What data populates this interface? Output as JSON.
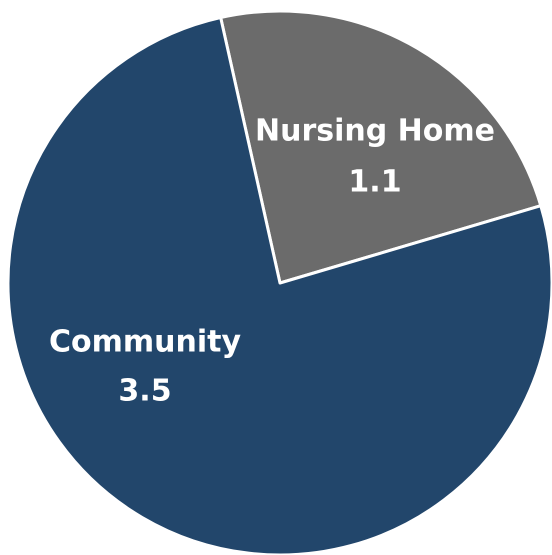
{
  "chart_data": {
    "type": "pie",
    "categories": [
      "Nursing Home",
      "Community"
    ],
    "values": [
      1.1,
      3.5
    ],
    "colors": [
      "#6b6b6b",
      "#22466b"
    ]
  }
}
